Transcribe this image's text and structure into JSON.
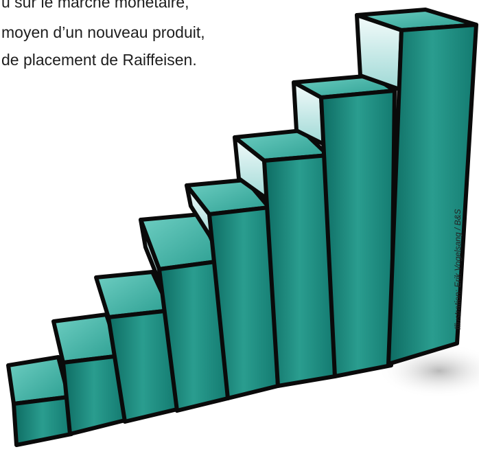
{
  "article": {
    "lines": [
      "u sur le marché monétaire,",
      "moyen d’un nouveau produit,",
      "de placement de Raiffeisen."
    ]
  },
  "credit": "Illustration: Erik Vogelsang / B&S"
}
